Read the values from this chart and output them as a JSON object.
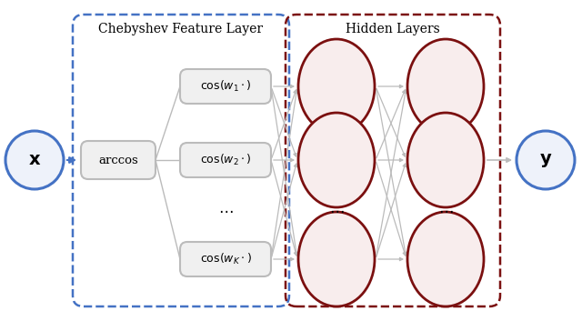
{
  "chebyshev_label": "Chebyshev Feature Layer",
  "hidden_label": "Hidden Layers",
  "arccos_label": "arccos",
  "blue_color": "#4472C4",
  "dark_red_color": "#7B1010",
  "gray_color": "#BBBBBB",
  "gray_line": "#BBBBBB",
  "box_bg": "#F0F0F0",
  "node_fill": "#F8EDED",
  "blue_fill": "#EEF2FA",
  "background": "#FFFFFF",
  "fig_w": 6.4,
  "fig_h": 3.53,
  "dpi": 100,
  "xlim": [
    0,
    640
  ],
  "ylim": [
    0,
    353
  ]
}
